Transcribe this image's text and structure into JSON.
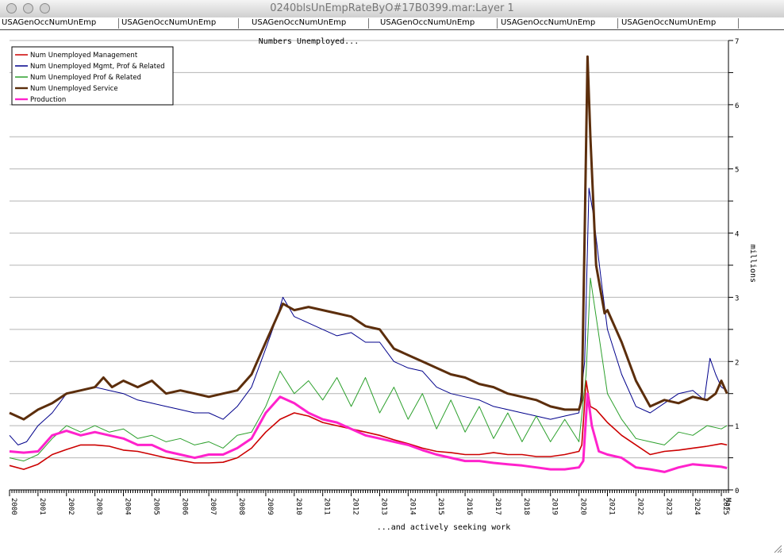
{
  "window": {
    "title": "0240blsUnEmpRateByO#17B0399.mar:Layer 1"
  },
  "tabs": [
    "USAGenOccNumUnEmp",
    "USAGenOccNumUnEmp",
    "USAGenOccNumUnEmp",
    "USAGenOccNumUnEmp",
    "USAGenOccNumUnEmp",
    "USAGenOccNumUnEmp"
  ],
  "chart_data": {
    "type": "line",
    "title": "Numbers Unemployed...",
    "xlabel": "...and actively seeking work",
    "ylabel": "millions",
    "ylim": [
      0,
      7
    ],
    "xlim": [
      2000.0,
      2025.25
    ],
    "yticks": [
      0,
      1,
      2,
      3,
      4,
      5,
      6,
      7
    ],
    "xticks": [
      "2000",
      "2001",
      "2002",
      "2003",
      "2004",
      "2005",
      "2006",
      "2007",
      "2008",
      "2009",
      "2010",
      "2011",
      "2012",
      "2013",
      "2014",
      "2015",
      "2016",
      "2017",
      "2018",
      "2019",
      "2020",
      "2021",
      "2022",
      "2023",
      "2024",
      "2025"
    ],
    "x_last_label": "Mar",
    "grid": true,
    "legend_position": "top-left",
    "series": [
      {
        "name": "Num Unemployed Management",
        "color": "#cc0000",
        "width": 1.6,
        "points": [
          [
            2000,
            0.38
          ],
          [
            2000.5,
            0.32
          ],
          [
            2001,
            0.4
          ],
          [
            2001.5,
            0.55
          ],
          [
            2002,
            0.63
          ],
          [
            2002.5,
            0.7
          ],
          [
            2003,
            0.7
          ],
          [
            2003.5,
            0.68
          ],
          [
            2004,
            0.62
          ],
          [
            2004.5,
            0.6
          ],
          [
            2005,
            0.55
          ],
          [
            2005.5,
            0.5
          ],
          [
            2006,
            0.46
          ],
          [
            2006.5,
            0.42
          ],
          [
            2007,
            0.42
          ],
          [
            2007.5,
            0.43
          ],
          [
            2008,
            0.5
          ],
          [
            2008.5,
            0.65
          ],
          [
            2009,
            0.9
          ],
          [
            2009.5,
            1.1
          ],
          [
            2010,
            1.2
          ],
          [
            2010.5,
            1.15
          ],
          [
            2011,
            1.05
          ],
          [
            2011.5,
            1.0
          ],
          [
            2012,
            0.95
          ],
          [
            2012.5,
            0.9
          ],
          [
            2013,
            0.85
          ],
          [
            2013.5,
            0.78
          ],
          [
            2014,
            0.72
          ],
          [
            2014.5,
            0.65
          ],
          [
            2015,
            0.6
          ],
          [
            2015.5,
            0.58
          ],
          [
            2016,
            0.55
          ],
          [
            2016.5,
            0.55
          ],
          [
            2017,
            0.58
          ],
          [
            2017.5,
            0.55
          ],
          [
            2018,
            0.55
          ],
          [
            2018.5,
            0.52
          ],
          [
            2019,
            0.52
          ],
          [
            2019.5,
            0.55
          ],
          [
            2020,
            0.6
          ],
          [
            2020.1,
            0.7
          ],
          [
            2020.25,
            1.7
          ],
          [
            2020.4,
            1.3
          ],
          [
            2020.6,
            1.25
          ],
          [
            2021,
            1.05
          ],
          [
            2021.5,
            0.85
          ],
          [
            2022,
            0.7
          ],
          [
            2022.5,
            0.55
          ],
          [
            2023,
            0.6
          ],
          [
            2023.5,
            0.62
          ],
          [
            2024,
            0.65
          ],
          [
            2024.5,
            0.68
          ],
          [
            2025,
            0.72
          ],
          [
            2025.2,
            0.7
          ]
        ]
      },
      {
        "name": "Num Unemployed Mgmt, Prof & Related",
        "color": "#00008b",
        "width": 1,
        "points": [
          [
            2000,
            0.85
          ],
          [
            2000.3,
            0.7
          ],
          [
            2000.6,
            0.75
          ],
          [
            2001,
            1.0
          ],
          [
            2001.5,
            1.2
          ],
          [
            2002,
            1.5
          ],
          [
            2002.5,
            1.55
          ],
          [
            2003,
            1.6
          ],
          [
            2003.5,
            1.55
          ],
          [
            2004,
            1.5
          ],
          [
            2004.5,
            1.4
          ],
          [
            2005,
            1.35
          ],
          [
            2005.5,
            1.3
          ],
          [
            2006,
            1.25
          ],
          [
            2006.5,
            1.2
          ],
          [
            2007,
            1.2
          ],
          [
            2007.5,
            1.1
          ],
          [
            2008,
            1.3
          ],
          [
            2008.5,
            1.6
          ],
          [
            2009,
            2.2
          ],
          [
            2009.4,
            2.7
          ],
          [
            2009.6,
            3.0
          ],
          [
            2010,
            2.7
          ],
          [
            2010.5,
            2.6
          ],
          [
            2011,
            2.5
          ],
          [
            2011.5,
            2.4
          ],
          [
            2012,
            2.45
          ],
          [
            2012.5,
            2.3
          ],
          [
            2013,
            2.3
          ],
          [
            2013.5,
            2.0
          ],
          [
            2014,
            1.9
          ],
          [
            2014.5,
            1.85
          ],
          [
            2015,
            1.6
          ],
          [
            2015.5,
            1.5
          ],
          [
            2016,
            1.45
          ],
          [
            2016.5,
            1.4
          ],
          [
            2017,
            1.3
          ],
          [
            2017.5,
            1.25
          ],
          [
            2018,
            1.2
          ],
          [
            2018.5,
            1.15
          ],
          [
            2019,
            1.1
          ],
          [
            2019.5,
            1.15
          ],
          [
            2020,
            1.2
          ],
          [
            2020.2,
            2.0
          ],
          [
            2020.35,
            4.7
          ],
          [
            2020.5,
            4.3
          ],
          [
            2020.8,
            3.2
          ],
          [
            2021,
            2.5
          ],
          [
            2021.5,
            1.8
          ],
          [
            2022,
            1.3
          ],
          [
            2022.5,
            1.2
          ],
          [
            2023,
            1.35
          ],
          [
            2023.5,
            1.5
          ],
          [
            2024,
            1.55
          ],
          [
            2024.4,
            1.4
          ],
          [
            2024.6,
            2.05
          ],
          [
            2024.8,
            1.8
          ],
          [
            2025,
            1.6
          ],
          [
            2025.2,
            1.55
          ]
        ]
      },
      {
        "name": "Num Unemployed Prof & Related",
        "color": "#2ca02c",
        "width": 1,
        "points": [
          [
            2000,
            0.5
          ],
          [
            2000.5,
            0.45
          ],
          [
            2001,
            0.55
          ],
          [
            2001.5,
            0.8
          ],
          [
            2002,
            1.0
          ],
          [
            2002.5,
            0.9
          ],
          [
            2003,
            1.0
          ],
          [
            2003.5,
            0.9
          ],
          [
            2004,
            0.95
          ],
          [
            2004.5,
            0.8
          ],
          [
            2005,
            0.85
          ],
          [
            2005.5,
            0.75
          ],
          [
            2006,
            0.8
          ],
          [
            2006.5,
            0.7
          ],
          [
            2007,
            0.75
          ],
          [
            2007.5,
            0.65
          ],
          [
            2008,
            0.85
          ],
          [
            2008.5,
            0.9
          ],
          [
            2009,
            1.3
          ],
          [
            2009.5,
            1.85
          ],
          [
            2010,
            1.5
          ],
          [
            2010.5,
            1.7
          ],
          [
            2011,
            1.4
          ],
          [
            2011.5,
            1.75
          ],
          [
            2012,
            1.3
          ],
          [
            2012.5,
            1.75
          ],
          [
            2013,
            1.2
          ],
          [
            2013.5,
            1.6
          ],
          [
            2014,
            1.1
          ],
          [
            2014.5,
            1.5
          ],
          [
            2015,
            0.95
          ],
          [
            2015.5,
            1.4
          ],
          [
            2016,
            0.9
          ],
          [
            2016.5,
            1.3
          ],
          [
            2017,
            0.8
          ],
          [
            2017.5,
            1.2
          ],
          [
            2018,
            0.75
          ],
          [
            2018.5,
            1.15
          ],
          [
            2019,
            0.75
          ],
          [
            2019.5,
            1.1
          ],
          [
            2020,
            0.75
          ],
          [
            2020.25,
            1.8
          ],
          [
            2020.4,
            3.3
          ],
          [
            2020.6,
            2.7
          ],
          [
            2021,
            1.5
          ],
          [
            2021.5,
            1.1
          ],
          [
            2022,
            0.8
          ],
          [
            2022.5,
            0.75
          ],
          [
            2023,
            0.7
          ],
          [
            2023.5,
            0.9
          ],
          [
            2024,
            0.85
          ],
          [
            2024.5,
            1.0
          ],
          [
            2025,
            0.95
          ],
          [
            2025.2,
            1.0
          ]
        ]
      },
      {
        "name": "Num Unemployed Service",
        "color": "#5c2e0c",
        "width": 3,
        "points": [
          [
            2000,
            1.2
          ],
          [
            2000.5,
            1.1
          ],
          [
            2001,
            1.25
          ],
          [
            2001.5,
            1.35
          ],
          [
            2002,
            1.5
          ],
          [
            2002.5,
            1.55
          ],
          [
            2003,
            1.6
          ],
          [
            2003.3,
            1.75
          ],
          [
            2003.6,
            1.6
          ],
          [
            2004,
            1.7
          ],
          [
            2004.5,
            1.6
          ],
          [
            2005,
            1.7
          ],
          [
            2005.5,
            1.5
          ],
          [
            2006,
            1.55
          ],
          [
            2006.5,
            1.5
          ],
          [
            2007,
            1.45
          ],
          [
            2007.5,
            1.5
          ],
          [
            2008,
            1.55
          ],
          [
            2008.5,
            1.8
          ],
          [
            2009,
            2.3
          ],
          [
            2009.4,
            2.7
          ],
          [
            2009.6,
            2.9
          ],
          [
            2010,
            2.8
          ],
          [
            2010.5,
            2.85
          ],
          [
            2011,
            2.8
          ],
          [
            2011.5,
            2.75
          ],
          [
            2012,
            2.7
          ],
          [
            2012.5,
            2.55
          ],
          [
            2013,
            2.5
          ],
          [
            2013.5,
            2.2
          ],
          [
            2014,
            2.1
          ],
          [
            2014.5,
            2.0
          ],
          [
            2015,
            1.9
          ],
          [
            2015.5,
            1.8
          ],
          [
            2016,
            1.75
          ],
          [
            2016.5,
            1.65
          ],
          [
            2017,
            1.6
          ],
          [
            2017.5,
            1.5
          ],
          [
            2018,
            1.45
          ],
          [
            2018.5,
            1.4
          ],
          [
            2019,
            1.3
          ],
          [
            2019.5,
            1.25
          ],
          [
            2020,
            1.25
          ],
          [
            2020.1,
            1.4
          ],
          [
            2020.2,
            4.0
          ],
          [
            2020.3,
            6.75
          ],
          [
            2020.4,
            5.5
          ],
          [
            2020.6,
            3.5
          ],
          [
            2020.9,
            2.75
          ],
          [
            2021,
            2.8
          ],
          [
            2021.5,
            2.3
          ],
          [
            2022,
            1.7
          ],
          [
            2022.5,
            1.3
          ],
          [
            2023,
            1.4
          ],
          [
            2023.5,
            1.35
          ],
          [
            2024,
            1.45
          ],
          [
            2024.5,
            1.4
          ],
          [
            2024.8,
            1.5
          ],
          [
            2025,
            1.7
          ],
          [
            2025.2,
            1.5
          ]
        ]
      },
      {
        "name": "Production",
        "color": "#ff22cc",
        "width": 3,
        "points": [
          [
            2000,
            0.6
          ],
          [
            2000.5,
            0.58
          ],
          [
            2001,
            0.6
          ],
          [
            2001.5,
            0.85
          ],
          [
            2002,
            0.92
          ],
          [
            2002.5,
            0.85
          ],
          [
            2003,
            0.9
          ],
          [
            2003.5,
            0.85
          ],
          [
            2004,
            0.8
          ],
          [
            2004.5,
            0.7
          ],
          [
            2005,
            0.7
          ],
          [
            2005.5,
            0.6
          ],
          [
            2006,
            0.55
          ],
          [
            2006.5,
            0.5
          ],
          [
            2007,
            0.55
          ],
          [
            2007.5,
            0.55
          ],
          [
            2008,
            0.65
          ],
          [
            2008.5,
            0.8
          ],
          [
            2009,
            1.2
          ],
          [
            2009.5,
            1.45
          ],
          [
            2010,
            1.35
          ],
          [
            2010.5,
            1.2
          ],
          [
            2011,
            1.1
          ],
          [
            2011.5,
            1.05
          ],
          [
            2012,
            0.95
          ],
          [
            2012.5,
            0.85
          ],
          [
            2013,
            0.8
          ],
          [
            2013.5,
            0.75
          ],
          [
            2014,
            0.7
          ],
          [
            2014.5,
            0.62
          ],
          [
            2015,
            0.55
          ],
          [
            2015.5,
            0.5
          ],
          [
            2016,
            0.45
          ],
          [
            2016.5,
            0.45
          ],
          [
            2017,
            0.42
          ],
          [
            2017.5,
            0.4
          ],
          [
            2018,
            0.38
          ],
          [
            2018.5,
            0.35
          ],
          [
            2019,
            0.32
          ],
          [
            2019.5,
            0.32
          ],
          [
            2020,
            0.35
          ],
          [
            2020.15,
            0.45
          ],
          [
            2020.3,
            1.5
          ],
          [
            2020.45,
            1.0
          ],
          [
            2020.7,
            0.6
          ],
          [
            2021,
            0.55
          ],
          [
            2021.5,
            0.5
          ],
          [
            2022,
            0.35
          ],
          [
            2022.5,
            0.32
          ],
          [
            2023,
            0.28
          ],
          [
            2023.5,
            0.35
          ],
          [
            2024,
            0.4
          ],
          [
            2024.5,
            0.38
          ],
          [
            2025,
            0.36
          ],
          [
            2025.2,
            0.34
          ]
        ]
      }
    ]
  }
}
